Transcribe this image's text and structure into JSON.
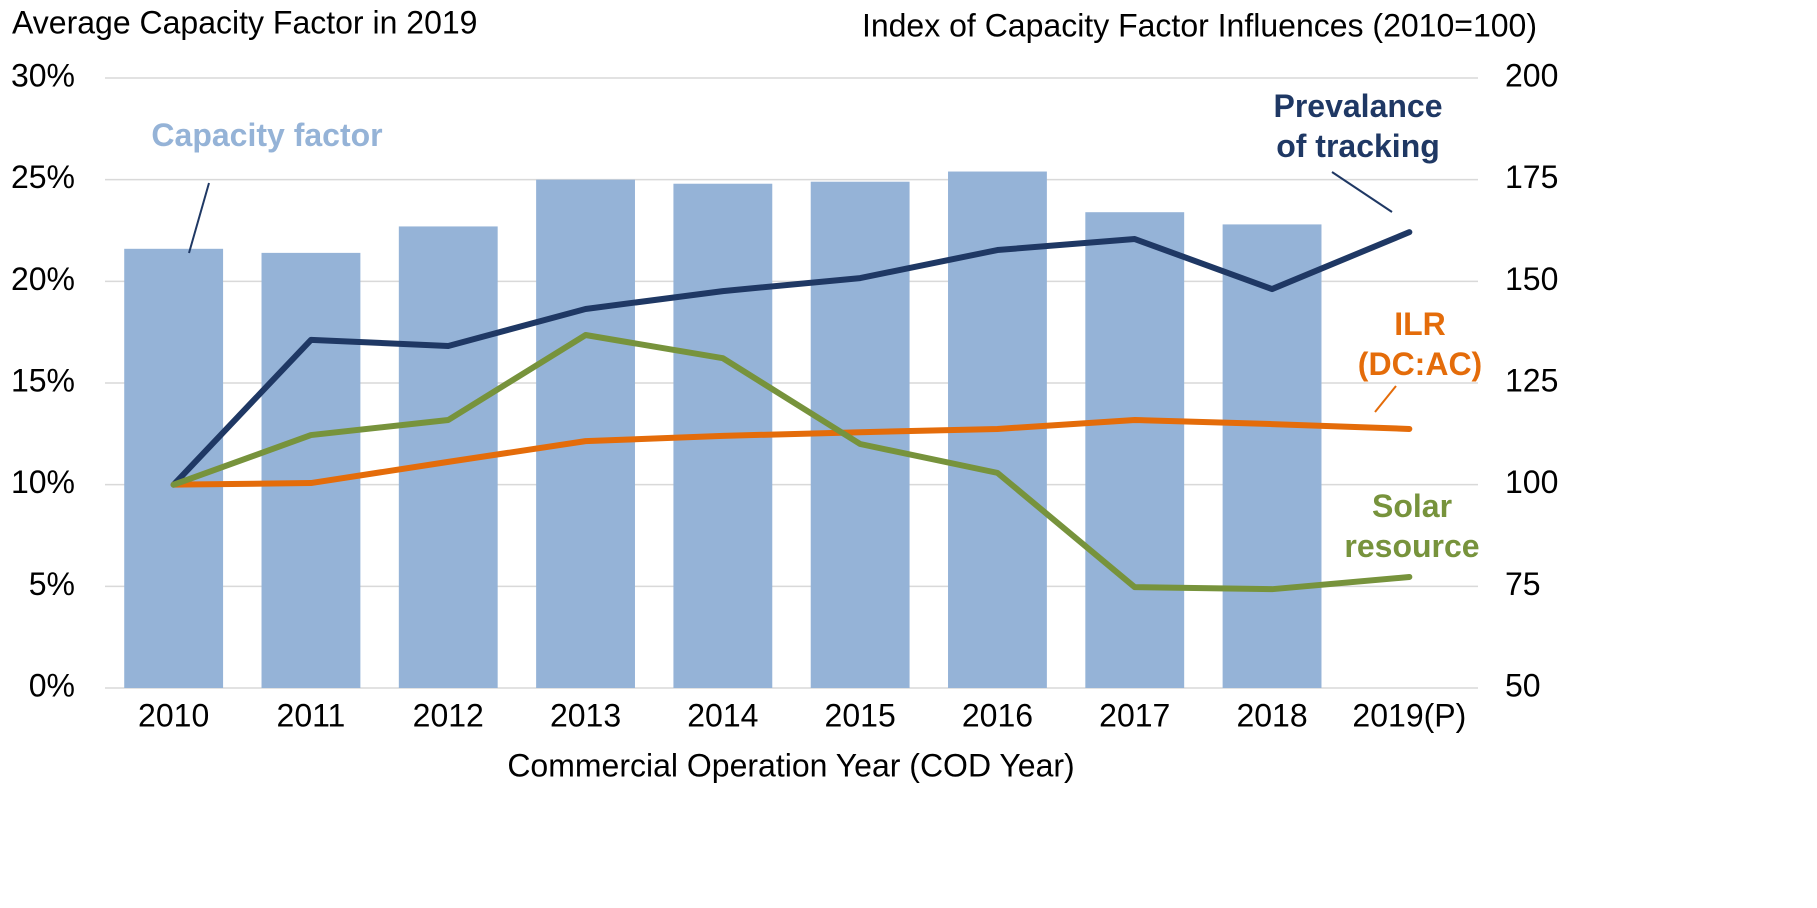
{
  "chart_data": {
    "type": "bar",
    "ylabel": "Average Capacity Factor in 2019",
    "y2label": "Index of Capacity Factor Influences (2010=100)",
    "xlabel": "Commercial Operation Year (COD Year)",
    "categories": [
      "2010",
      "2011",
      "2012",
      "2013",
      "2014",
      "2015",
      "2016",
      "2017",
      "2018",
      "2019(P)"
    ],
    "series": [
      {
        "name": "Capacity factor",
        "type": "bar",
        "color": "#95b3d7",
        "values": [
          21.6,
          21.4,
          22.7,
          25.0,
          24.8,
          24.9,
          25.4,
          23.4,
          22.8,
          null
        ]
      },
      {
        "name": "Prevalance of tracking",
        "type": "line",
        "axis": "y2",
        "color": "#1f3864",
        "values": [
          100,
          135.6,
          134.1,
          143.2,
          147.6,
          150.8,
          157.7,
          160.4,
          148.1,
          162.1
        ]
      },
      {
        "name": "ILR (DC:AC)",
        "type": "line",
        "axis": "y2",
        "color": "#e46c0a",
        "values": [
          100,
          100.4,
          105.6,
          110.7,
          112.0,
          112.9,
          113.7,
          115.9,
          114.9,
          113.7
        ]
      },
      {
        "name": "Solar resource",
        "type": "line",
        "axis": "y2",
        "color": "#77933c",
        "values": [
          100,
          112.2,
          115.9,
          136.8,
          131.1,
          110.0,
          102.9,
          74.8,
          74.3,
          77.3
        ]
      }
    ],
    "ylim": [
      0,
      30
    ],
    "yticks": [
      {
        "value": 0,
        "label": "0%"
      },
      {
        "value": 5,
        "label": "5%"
      },
      {
        "value": 10,
        "label": "10%"
      },
      {
        "value": 15,
        "label": "15%"
      },
      {
        "value": 20,
        "label": "20%"
      },
      {
        "value": 25,
        "label": "25%"
      },
      {
        "value": 30,
        "label": "30%"
      }
    ],
    "y2lim": [
      50,
      200
    ],
    "y2ticks": [
      50,
      75,
      100,
      125,
      150,
      175,
      200
    ],
    "grid": true
  }
}
